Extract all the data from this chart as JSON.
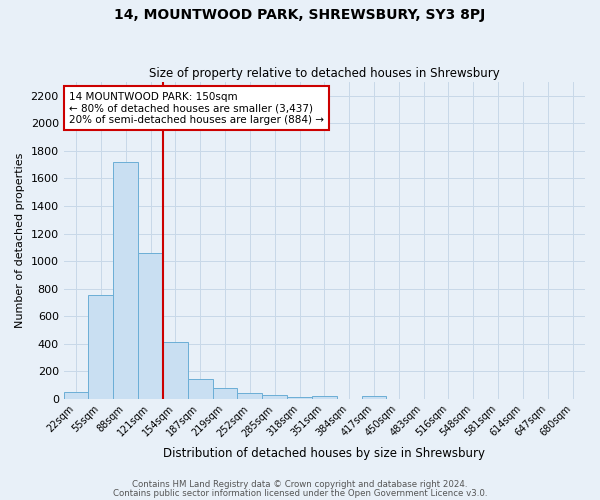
{
  "title": "14, MOUNTWOOD PARK, SHREWSBURY, SY3 8PJ",
  "subtitle": "Size of property relative to detached houses in Shrewsbury",
  "xlabel": "Distribution of detached houses by size in Shrewsbury",
  "ylabel": "Number of detached properties",
  "bar_labels": [
    "22sqm",
    "55sqm",
    "88sqm",
    "121sqm",
    "154sqm",
    "187sqm",
    "219sqm",
    "252sqm",
    "285sqm",
    "318sqm",
    "351sqm",
    "384sqm",
    "417sqm",
    "450sqm",
    "483sqm",
    "516sqm",
    "548sqm",
    "581sqm",
    "614sqm",
    "647sqm",
    "680sqm"
  ],
  "bar_values": [
    50,
    755,
    1720,
    1060,
    415,
    145,
    80,
    40,
    25,
    15,
    20,
    0,
    20,
    0,
    0,
    0,
    0,
    0,
    0,
    0,
    0
  ],
  "bar_color": "#c9dff2",
  "bar_edge_color": "#6baed6",
  "grid_color": "#c8d8e8",
  "background_color": "#e8f0f8",
  "vline_x": 3.5,
  "vline_color": "#cc0000",
  "annotation_title": "14 MOUNTWOOD PARK: 150sqm",
  "annotation_line1": "← 80% of detached houses are smaller (3,437)",
  "annotation_line2": "20% of semi-detached houses are larger (884) →",
  "annotation_box_color": "#ffffff",
  "annotation_box_edge": "#cc0000",
  "ylim": [
    0,
    2300
  ],
  "yticks": [
    0,
    200,
    400,
    600,
    800,
    1000,
    1200,
    1400,
    1600,
    1800,
    2000,
    2200
  ],
  "footer1": "Contains HM Land Registry data © Crown copyright and database right 2024.",
  "footer2": "Contains public sector information licensed under the Open Government Licence v3.0."
}
